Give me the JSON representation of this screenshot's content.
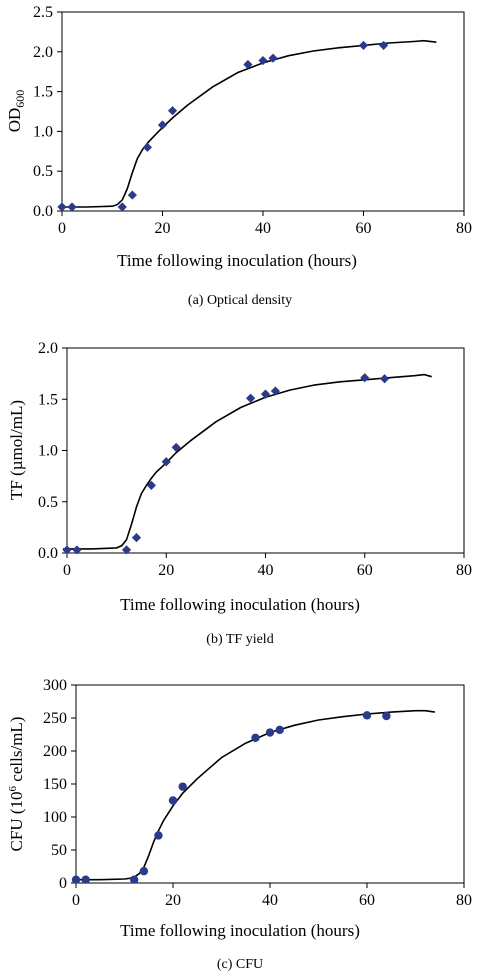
{
  "chart_data": [
    {
      "type": "scatter",
      "caption": "(a) Optical density",
      "xlabel": "Time following inoculation (hours)",
      "ylabel": {
        "main": "OD",
        "sub": "600"
      },
      "xlim": [
        0,
        80
      ],
      "ylim": [
        0,
        2.5
      ],
      "xticks": [
        "0",
        "20",
        "40",
        "60",
        "80"
      ],
      "yticks": [
        "0.0",
        "0.5",
        "1.0",
        "1.5",
        "2.0",
        "2.5"
      ],
      "marker": "diamond",
      "color": "#2b3a8a",
      "points": {
        "x": [
          0,
          2,
          12,
          14,
          17,
          20,
          22,
          37,
          40,
          42,
          60,
          64
        ],
        "y": [
          0.05,
          0.05,
          0.05,
          0.2,
          0.8,
          1.08,
          1.26,
          1.84,
          1.89,
          1.92,
          2.08,
          2.08
        ]
      },
      "fit_curve": {
        "x": [
          -1,
          5,
          10,
          11,
          12,
          13,
          14,
          15,
          16,
          17,
          18,
          20,
          22,
          25,
          30,
          35,
          40,
          45,
          50,
          55,
          60,
          65,
          70,
          72,
          74.5
        ],
        "y": [
          0.05,
          0.05,
          0.06,
          0.08,
          0.14,
          0.28,
          0.48,
          0.66,
          0.77,
          0.85,
          0.92,
          1.05,
          1.17,
          1.33,
          1.56,
          1.74,
          1.86,
          1.95,
          2.01,
          2.05,
          2.08,
          2.11,
          2.13,
          2.14,
          2.12
        ]
      }
    },
    {
      "type": "scatter",
      "caption": "(b) TF yield",
      "xlabel": "Time following inoculation (hours)",
      "ylabel": {
        "main": "TF (µmol/mL)"
      },
      "xlim": [
        0,
        80
      ],
      "ylim": [
        0,
        2.0
      ],
      "xticks": [
        "0",
        "20",
        "40",
        "60",
        "80"
      ],
      "yticks": [
        "0.0",
        "0.5",
        "1.0",
        "1.5",
        "2.0"
      ],
      "marker": "diamond",
      "color": "#2b3a8a",
      "points": {
        "x": [
          0,
          2,
          12,
          14,
          17,
          20,
          22,
          37,
          40,
          42,
          60,
          64
        ],
        "y": [
          0.03,
          0.03,
          0.03,
          0.15,
          0.66,
          0.89,
          1.03,
          1.51,
          1.55,
          1.58,
          1.71,
          1.7
        ]
      },
      "fit_curve": {
        "x": [
          -1,
          5,
          10,
          11,
          12,
          13,
          14,
          15,
          16,
          17,
          18,
          20,
          22,
          25,
          30,
          35,
          40,
          45,
          50,
          55,
          60,
          65,
          70,
          72,
          73.5
        ],
        "y": [
          0.04,
          0.04,
          0.05,
          0.07,
          0.13,
          0.28,
          0.45,
          0.58,
          0.66,
          0.73,
          0.79,
          0.88,
          0.98,
          1.1,
          1.28,
          1.42,
          1.52,
          1.59,
          1.64,
          1.67,
          1.69,
          1.71,
          1.73,
          1.74,
          1.72
        ]
      }
    },
    {
      "type": "scatter",
      "caption": "(c) CFU",
      "xlabel": "Time following inoculation (hours)",
      "ylabel": {
        "main": "CFU (10",
        "sup": "6",
        "rest": " cells/mL)"
      },
      "xlim": [
        0,
        80
      ],
      "ylim": [
        0,
        300
      ],
      "xticks": [
        "0",
        "20",
        "40",
        "60",
        "80"
      ],
      "yticks": [
        "0",
        "50",
        "100",
        "150",
        "200",
        "250",
        "300"
      ],
      "marker": "circle",
      "color": "#2b3a8a",
      "points": {
        "x": [
          0,
          2,
          12,
          14,
          17,
          20,
          22,
          37,
          40,
          42,
          60,
          64
        ],
        "y": [
          5,
          5,
          5,
          18,
          72,
          125,
          146,
          220,
          228,
          232,
          254,
          253
        ]
      },
      "fit_curve": {
        "x": [
          -1,
          5,
          10,
          11,
          12,
          13,
          14,
          15,
          16,
          17,
          18,
          20,
          22,
          25,
          30,
          35,
          40,
          45,
          50,
          55,
          60,
          65,
          70,
          72,
          74
        ],
        "y": [
          5,
          5,
          6,
          7,
          9,
          14,
          24,
          42,
          62,
          79,
          94,
          117,
          136,
          158,
          190,
          212,
          228,
          239,
          247,
          252,
          256,
          259,
          261,
          261,
          259
        ]
      }
    }
  ]
}
